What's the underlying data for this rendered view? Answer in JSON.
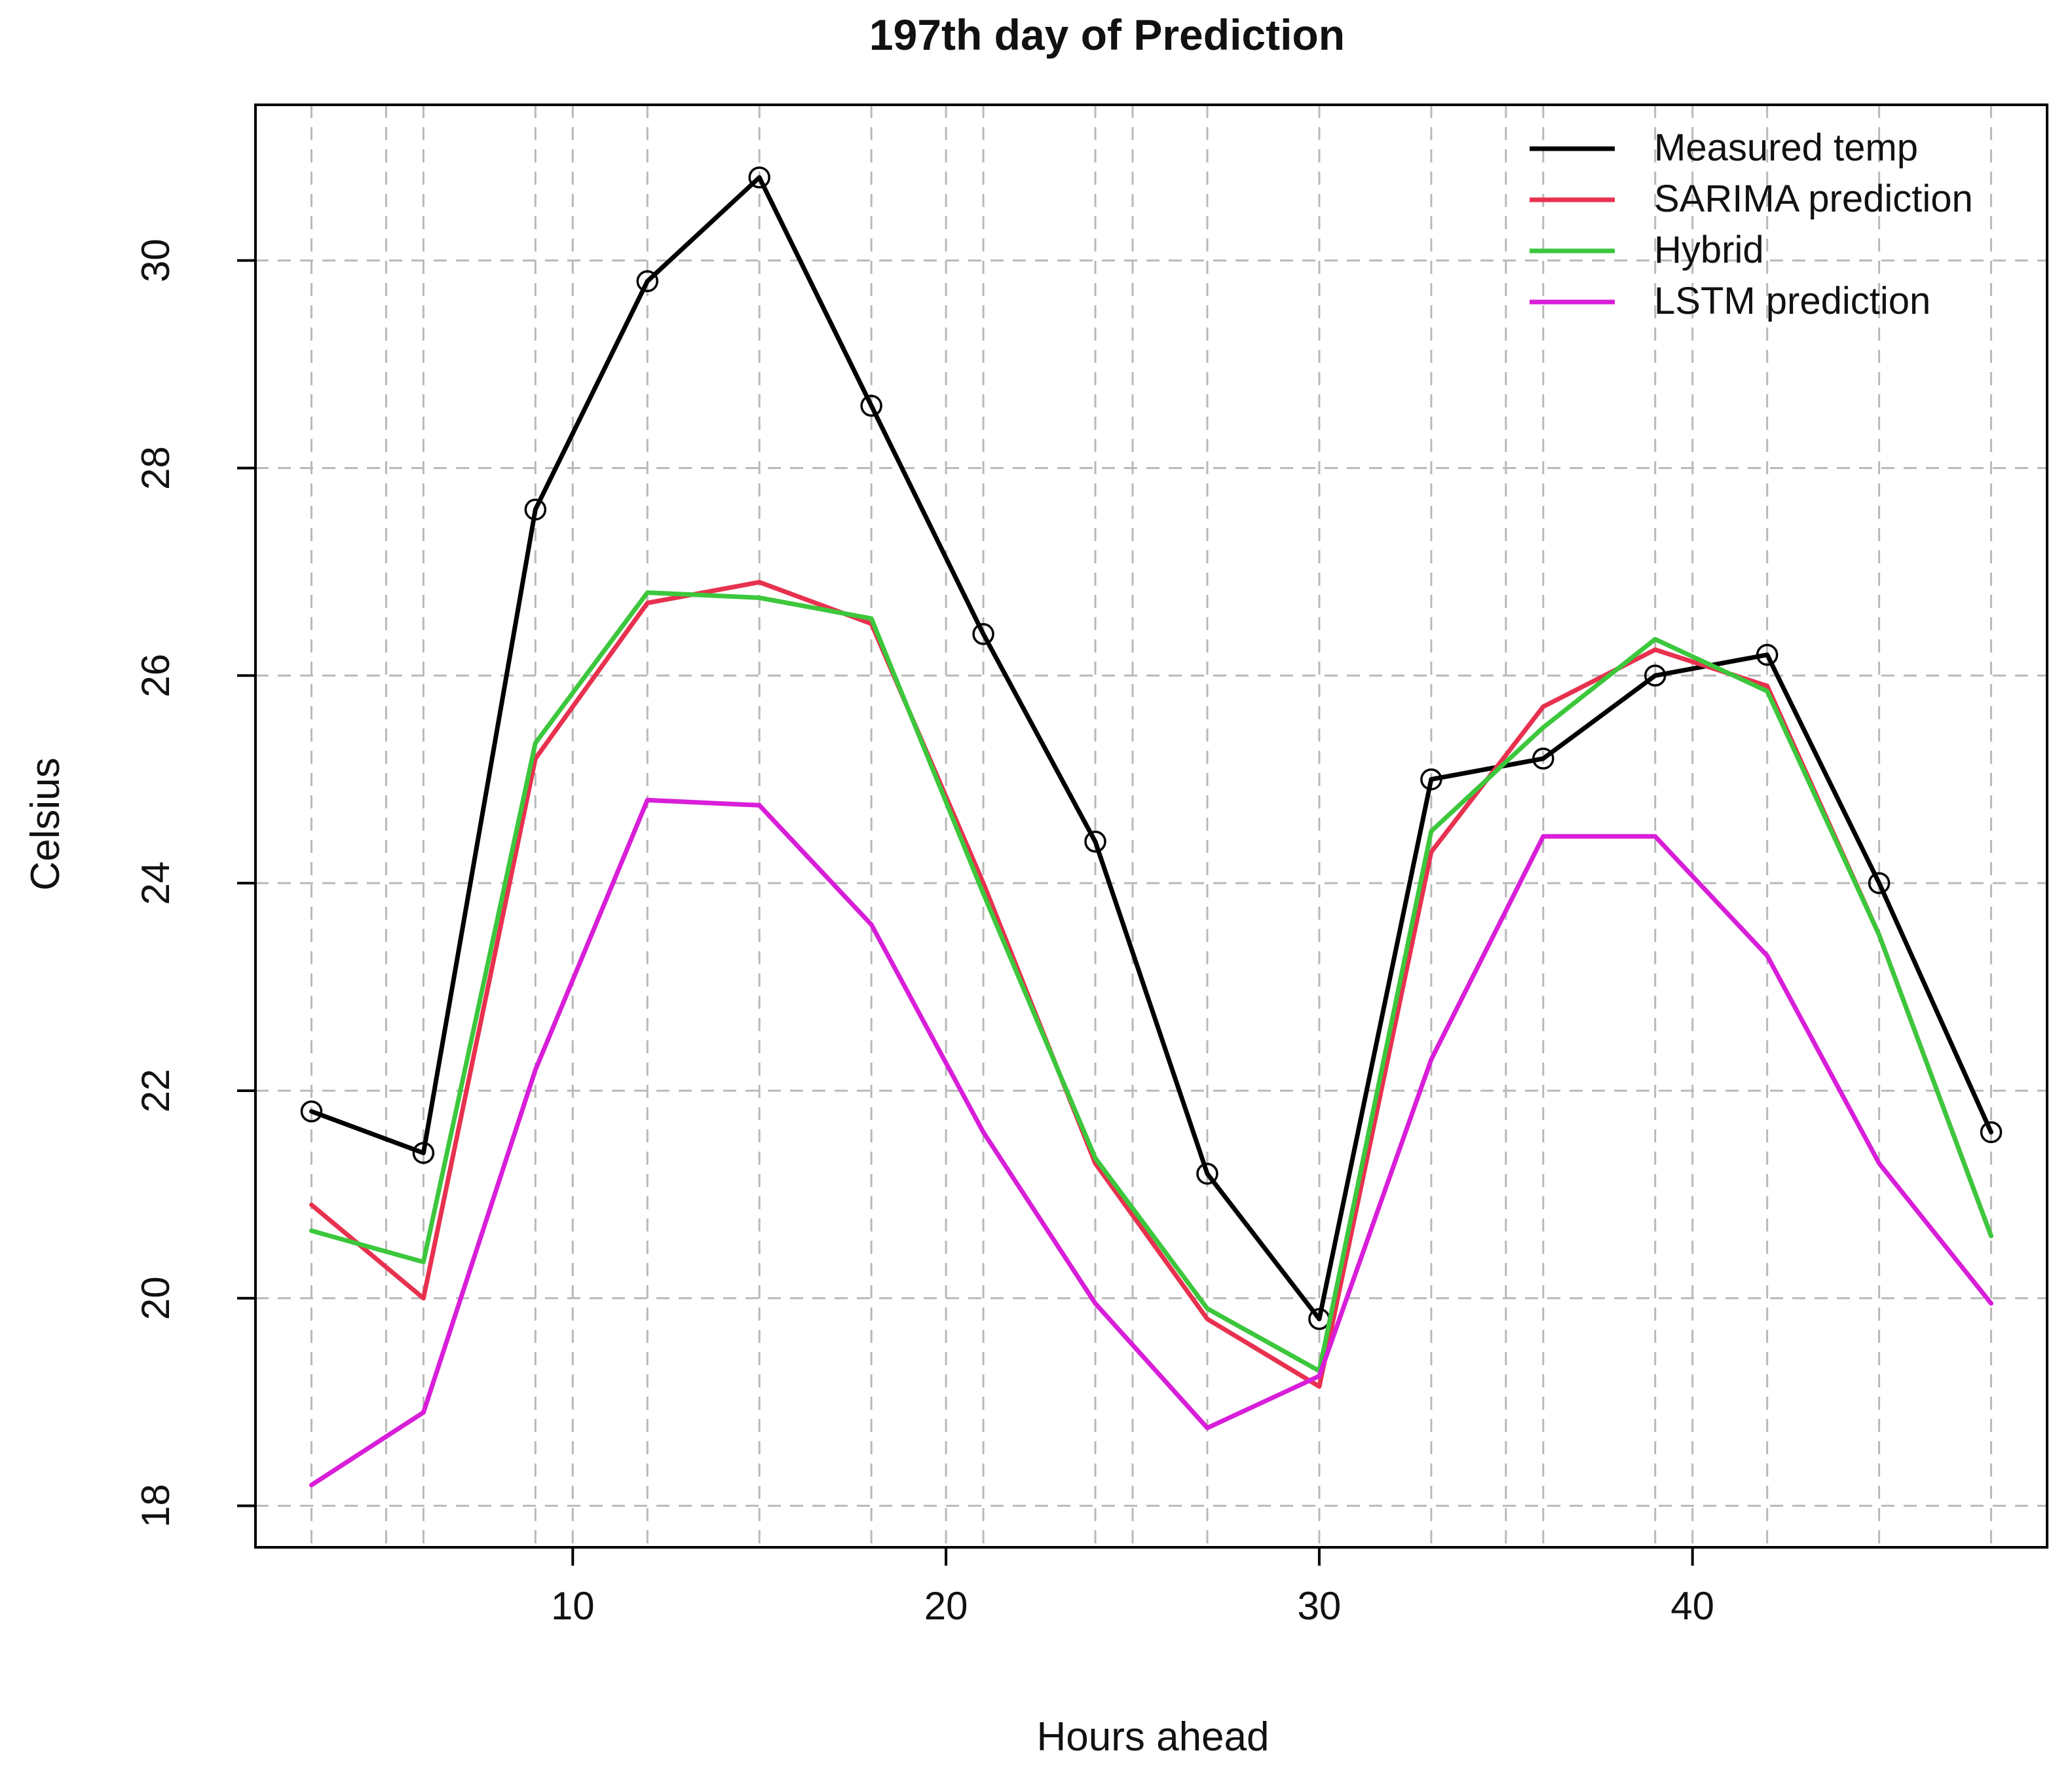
{
  "chart_data": {
    "type": "line",
    "title": "197th day of Prediction",
    "xlabel": "Hours ahead",
    "ylabel": "Celsius",
    "xlim": [
      1.5,
      49.5
    ],
    "ylim": [
      17.6,
      31.5
    ],
    "x_ticks": [
      "10",
      "20",
      "30",
      "40"
    ],
    "y_ticks": [
      "18",
      "20",
      "22",
      "24",
      "26",
      "28",
      "30"
    ],
    "grid": true,
    "legend_position": "top-right",
    "x": [
      3,
      6,
      9,
      12,
      15,
      18,
      21,
      24,
      27,
      30,
      33,
      36,
      39,
      42,
      45,
      48
    ],
    "series": [
      {
        "name": "Measured temp",
        "color": "#000000",
        "markers": true,
        "values": [
          21.8,
          21.4,
          27.6,
          29.8,
          30.8,
          28.6,
          26.4,
          24.4,
          21.2,
          19.8,
          25.0,
          25.2,
          26.0,
          26.2,
          24.0,
          21.6
        ]
      },
      {
        "name": "SARIMA prediction",
        "color": "#e8314f",
        "markers": false,
        "values": [
          20.9,
          20.0,
          25.2,
          26.7,
          26.9,
          26.5,
          24.0,
          21.3,
          19.8,
          19.15,
          24.3,
          25.7,
          26.25,
          25.9,
          23.5,
          20.6
        ]
      },
      {
        "name": "Hybrid",
        "color": "#3cc73c",
        "markers": false,
        "values": [
          20.65,
          20.35,
          25.35,
          26.8,
          26.75,
          26.55,
          23.9,
          21.35,
          19.9,
          19.3,
          24.5,
          25.5,
          26.35,
          25.85,
          23.5,
          20.6
        ]
      },
      {
        "name": "LSTM prediction",
        "color": "#d81ed8",
        "markers": false,
        "values": [
          18.2,
          18.9,
          22.2,
          24.8,
          24.75,
          23.6,
          21.6,
          19.95,
          18.75,
          19.25,
          22.3,
          24.45,
          24.45,
          23.3,
          21.3,
          19.95
        ]
      }
    ]
  }
}
